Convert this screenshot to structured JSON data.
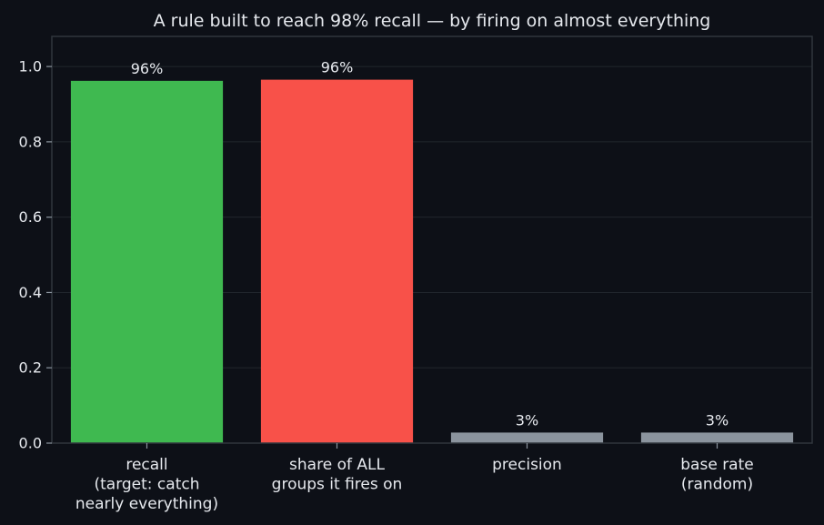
{
  "chart_data": {
    "type": "bar",
    "title": "A rule built to reach 98% recall — by firing on almost everything",
    "xlabel": "",
    "ylabel": "",
    "ylim": [
      0,
      1.08
    ],
    "yticks": [
      0.0,
      0.2,
      0.4,
      0.6,
      0.8,
      1.0
    ],
    "ytick_labels": [
      "0.0",
      "0.2",
      "0.4",
      "0.6",
      "0.8",
      "1.0"
    ],
    "grid": true,
    "categories": [
      [
        "recall",
        "(target: catch",
        "nearly everything)"
      ],
      [
        "share of ALL",
        "groups it fires on"
      ],
      [
        "precision"
      ],
      [
        "base rate",
        "(random)"
      ]
    ],
    "values": [
      0.962,
      0.965,
      0.028,
      0.028
    ],
    "data_labels": [
      "96%",
      "96%",
      "3%",
      "3%"
    ],
    "colors": [
      "#3fb950",
      "#f85149",
      "#8b949e",
      "#8b949e"
    ],
    "background": "#0d1017",
    "plot_background": "#0d1017",
    "axis_color": "#30363d",
    "grid_color": "#21262d",
    "text_color": "#e6e9ee"
  }
}
